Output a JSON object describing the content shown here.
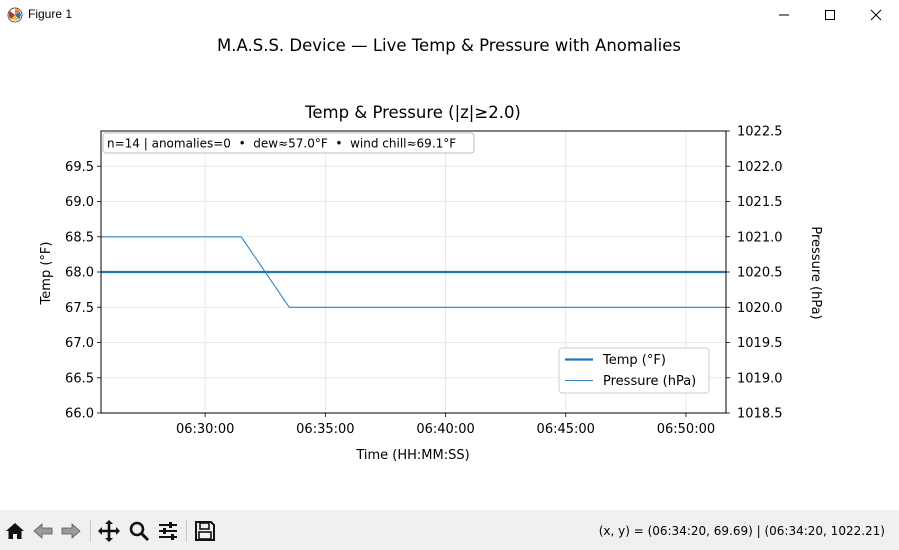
{
  "window": {
    "title": "Figure 1",
    "controls": [
      "minimize",
      "maximize",
      "close"
    ]
  },
  "figure": {
    "suptitle": "M.A.S.S. Device — Live Temp & Pressure with Anomalies"
  },
  "chart_data": {
    "type": "line",
    "title": "Temp & Pressure (|z|≥2.0)",
    "xlabel": "Time (HH:MM:SS)",
    "ylabel_left": "Temp (°F)",
    "ylabel_right": "Pressure (hPa)",
    "xlim": [
      "06:25:40",
      "06:51:40"
    ],
    "xticks": [
      "06:30:00",
      "06:35:00",
      "06:40:00",
      "06:45:00",
      "06:50:00"
    ],
    "ylim_left": [
      66.0,
      70.0
    ],
    "yticks_left": [
      "66.0",
      "66.5",
      "67.0",
      "67.5",
      "68.0",
      "68.5",
      "69.0",
      "69.5"
    ],
    "ylim_right": [
      1018.5,
      1022.5
    ],
    "yticks_right": [
      "1018.5",
      "1019.0",
      "1019.5",
      "1020.0",
      "1020.5",
      "1021.0",
      "1021.5",
      "1022.0",
      "1022.5"
    ],
    "grid": true,
    "annotation": "n=14 | anomalies=0  •  dew≈57.0°F  •  wind chill≈69.1°F",
    "legend_position": "lower-right",
    "series": [
      {
        "name": "Temp (°F)",
        "axis": "left",
        "color": "#1f77b4",
        "style": "thick",
        "x": [
          "06:25:40",
          "06:51:40"
        ],
        "y": [
          68.0,
          68.0
        ]
      },
      {
        "name": "Pressure (hPa)",
        "axis": "right",
        "color": "#1f77b4",
        "style": "thin",
        "x": [
          "06:25:40",
          "06:31:30",
          "06:33:30",
          "06:51:40"
        ],
        "y": [
          1021.0,
          1021.0,
          1020.0,
          1020.0
        ]
      }
    ]
  },
  "toolbar": {
    "buttons": [
      "home",
      "back",
      "forward",
      "pan",
      "zoom",
      "configure",
      "save"
    ],
    "coords_text": "(x, y) = (06:34:20, 69.69) | (06:34:20, 1022.21)"
  }
}
